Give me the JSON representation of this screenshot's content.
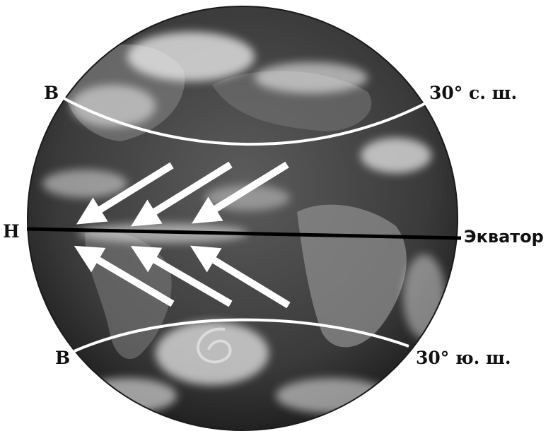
{
  "labels": {
    "north_high": "В",
    "north_lat": "30° с. ш.",
    "low": "Н",
    "equator": "Экватор",
    "south_high": "В",
    "south_lat": "30° ю. ш."
  },
  "colors": {
    "ocean": "#2e2e2e",
    "land": "#8c8c8c",
    "cloud": "#f2f2f2",
    "arrow": "#ffffff",
    "equator_line": "#000000",
    "latitude_line": "#ffffff"
  },
  "arrows": {
    "north_hemisphere": "trade winds blowing from northeast toward equator",
    "south_hemisphere": "trade winds blowing from southeast toward equator"
  }
}
